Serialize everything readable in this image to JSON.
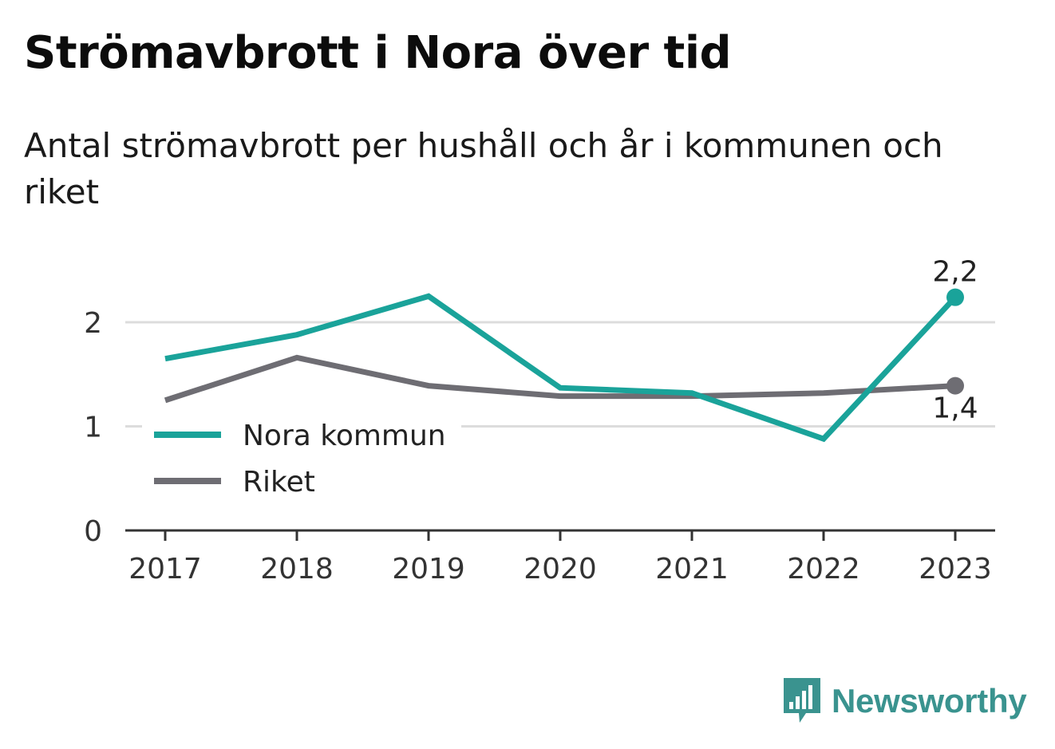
{
  "title": "Strömavbrott i Nora över tid",
  "subtitle": "Antal strömavbrott per hushåll och år i kommunen och riket",
  "brand": {
    "name": "Newsworthy",
    "icon": "newsworthy-logo-icon",
    "color": "#3a938f"
  },
  "chart_data": {
    "type": "line",
    "x": [
      2017,
      2018,
      2019,
      2020,
      2021,
      2022,
      2023
    ],
    "ylim": [
      0,
      2.5
    ],
    "yticks": [
      0,
      1,
      2
    ],
    "grid": true,
    "legend_position": "lower-left",
    "series": [
      {
        "name": "Nora kommun",
        "color": "#1aa39a",
        "values": [
          1.65,
          1.88,
          2.25,
          1.37,
          1.32,
          0.88,
          2.24
        ],
        "end_label": "2,2"
      },
      {
        "name": "Riket",
        "color": "#6e6d73",
        "values": [
          1.25,
          1.66,
          1.39,
          1.29,
          1.29,
          1.32,
          1.39
        ],
        "end_label": "1,4"
      }
    ]
  }
}
